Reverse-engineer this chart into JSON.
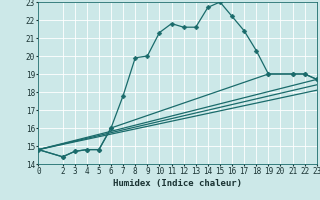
{
  "title": "",
  "xlabel": "Humidex (Indice chaleur)",
  "bg_color": "#cce8e8",
  "grid_color": "#ffffff",
  "line_color": "#1a6b6b",
  "xlim": [
    0,
    23
  ],
  "ylim": [
    14,
    23
  ],
  "xticks": [
    0,
    2,
    3,
    4,
    5,
    6,
    7,
    8,
    9,
    10,
    11,
    12,
    13,
    14,
    15,
    16,
    17,
    18,
    19,
    20,
    21,
    22,
    23
  ],
  "yticks": [
    14,
    15,
    16,
    17,
    18,
    19,
    20,
    21,
    22,
    23
  ],
  "line1_x": [
    0,
    2,
    3,
    4,
    5,
    6,
    7,
    8,
    9,
    10,
    11,
    12,
    13,
    14,
    15,
    16,
    17,
    18,
    19,
    21,
    22,
    23
  ],
  "line1_y": [
    14.8,
    14.4,
    14.7,
    14.8,
    14.8,
    16.0,
    17.8,
    19.9,
    20.0,
    21.3,
    21.8,
    21.6,
    21.6,
    22.7,
    23.0,
    22.2,
    21.4,
    20.3,
    19.0,
    19.0,
    19.0,
    18.7
  ],
  "line2_x": [
    0,
    2,
    3,
    4,
    5,
    6,
    19,
    21,
    22,
    23
  ],
  "line2_y": [
    14.8,
    14.4,
    14.7,
    14.8,
    14.8,
    16.0,
    19.0,
    19.0,
    19.0,
    18.7
  ],
  "line3_x": [
    0,
    23
  ],
  "line3_y": [
    14.8,
    18.7
  ],
  "line4_x": [
    0,
    23
  ],
  "line4_y": [
    14.8,
    18.4
  ],
  "line5_x": [
    0,
    23
  ],
  "line5_y": [
    14.8,
    18.1
  ],
  "marker_size": 2.5,
  "linewidth": 0.9,
  "tick_fontsize": 5.5,
  "xlabel_fontsize": 6.5
}
